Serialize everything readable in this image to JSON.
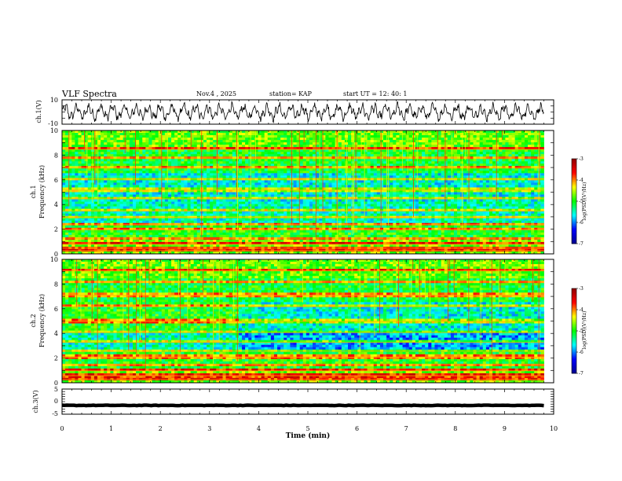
{
  "header": {
    "title": "VLF Spectra",
    "date": "Nov.4  , 2025",
    "station": "station= KAP",
    "start": "start  UT  =   12: 40: 1"
  },
  "chart_data": [
    {
      "id": "ch1",
      "type": "line",
      "ylabel": "ch.1(V)",
      "ylim": [
        -10,
        10
      ],
      "yticks": [
        "10",
        "-10"
      ],
      "xlim": [
        0,
        10
      ],
      "description_values": "noisy oscillation around 0 V, amplitude roughly +/-6 V, from t=0 to 9.8 min"
    },
    {
      "id": "spec1",
      "type": "heatmap",
      "ylabel": [
        "ch.1",
        "Frequency  (kHz)"
      ],
      "ylim": [
        0,
        10
      ],
      "yticks": [
        "0",
        "2",
        "4",
        "6",
        "8",
        "10"
      ],
      "xlim": [
        0,
        10
      ],
      "bands_khz": [
        0.3,
        0.5,
        0.8,
        1.3,
        2.0,
        2.4,
        3.0,
        3.5,
        4.5,
        5.2,
        6.1,
        7.0,
        7.8,
        8.5
      ],
      "colorbar": {
        "label": "log(PSD)(V²/Hz)",
        "range": [
          -7,
          -3
        ],
        "ticks": [
          "-3",
          "-4",
          "-5",
          "-6",
          "-7"
        ]
      }
    },
    {
      "id": "spec2",
      "type": "heatmap",
      "ylabel": [
        "ch.2",
        "Frequency  (kHz)"
      ],
      "ylim": [
        0,
        10
      ],
      "yticks": [
        "0",
        "2",
        "4",
        "6",
        "8",
        "10"
      ],
      "xlim": [
        0,
        10
      ],
      "bands_khz": [
        0.3,
        0.6,
        1.0,
        1.5,
        2.1,
        2.6,
        3.3,
        4.1,
        5.0,
        6.2,
        7.1,
        8.2,
        9.1
      ],
      "colorbar": {
        "label": "log(PSD)(V²/Hz)",
        "range": [
          -7,
          -3
        ],
        "ticks": [
          "-3",
          "-4",
          "-5",
          "-6",
          "-7"
        ]
      }
    },
    {
      "id": "ch3",
      "type": "line",
      "ylabel": "ch.3(V)",
      "ylim": [
        -5,
        5
      ],
      "yticks": [
        "5",
        "0",
        "-5"
      ],
      "xlim": [
        0,
        10
      ],
      "xticks": [
        "0",
        "1",
        "2",
        "3",
        "4",
        "5",
        "6",
        "7",
        "8",
        "9",
        "10"
      ],
      "xlabel": "Time  (min)",
      "description_values": "constant near -1.5 V with small fluctuation, t=0 to 9.8 min"
    }
  ],
  "colors": {
    "axis": "#000000",
    "colormap": [
      "#00008f",
      "#0000ff",
      "#00ffff",
      "#00ff00",
      "#ffff00",
      "#ff0000",
      "#8f0000"
    ]
  }
}
